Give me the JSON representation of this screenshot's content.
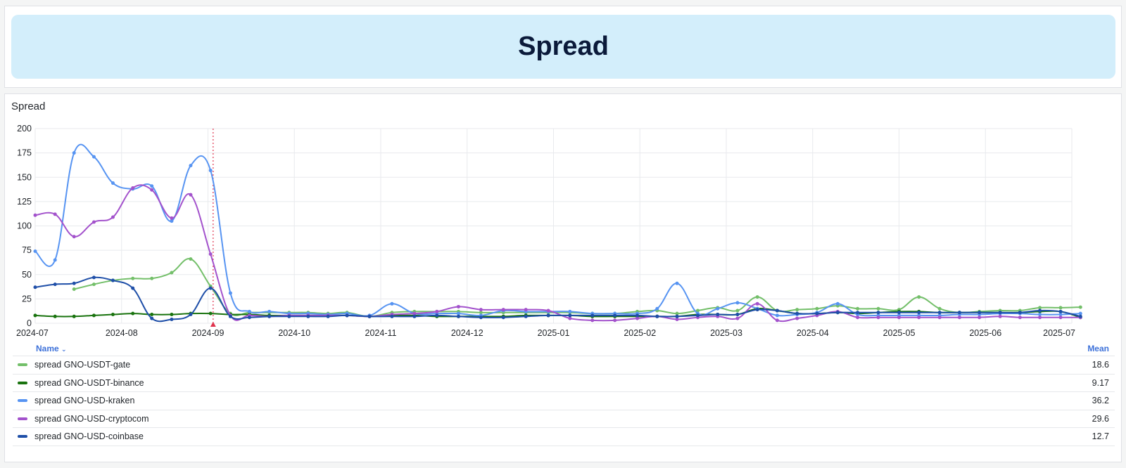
{
  "header": {
    "title": "Spread"
  },
  "panel": {
    "title": "Spread"
  },
  "legend": {
    "name_header": "Name",
    "mean_header": "Mean",
    "rows": [
      {
        "name": "spread GNO-USDT-gate",
        "mean": "18.6",
        "color": "#73bf69"
      },
      {
        "name": "spread GNO-USDT-binance",
        "mean": "9.17",
        "color": "#19730e"
      },
      {
        "name": "spread GNO-USD-kraken",
        "mean": "36.2",
        "color": "#5794f2"
      },
      {
        "name": "spread GNO-USD-cryptocom",
        "mean": "29.6",
        "color": "#a352cc"
      },
      {
        "name": "spread GNO-USD-coinbase",
        "mean": "12.7",
        "color": "#1f4fa8"
      }
    ]
  },
  "chart_data": {
    "type": "line",
    "x_tick_labels": [
      "2024-07",
      "2024-08",
      "2024-09",
      "2024-10",
      "2024-11",
      "2024-12",
      "2025-01",
      "2025-02",
      "2025-03",
      "2025-04",
      "2025-05",
      "2025-06",
      "2025-07"
    ],
    "x_tick_months": [
      0,
      1,
      2,
      3,
      4,
      5,
      6,
      7,
      8,
      9,
      10,
      11,
      12
    ],
    "y_ticks": [
      0,
      25,
      50,
      75,
      100,
      125,
      150,
      175,
      200
    ],
    "ylim": [
      0,
      200
    ],
    "xlim_months": [
      0,
      12
    ],
    "grid": true,
    "annotation_month": 2.06,
    "series": [
      {
        "name": "spread GNO-USDT-gate",
        "color": "#73bf69",
        "points": [
          [
            0.45,
            35
          ],
          [
            0.68,
            40
          ],
          [
            0.9,
            44
          ],
          [
            1.13,
            46
          ],
          [
            1.35,
            46
          ],
          [
            1.58,
            52
          ],
          [
            1.8,
            66
          ],
          [
            2.03,
            38
          ],
          [
            2.26,
            10
          ],
          [
            2.48,
            11
          ],
          [
            2.71,
            11
          ],
          [
            2.94,
            11
          ],
          [
            3.16,
            11
          ],
          [
            3.39,
            10
          ],
          [
            3.61,
            11
          ],
          [
            3.87,
            7
          ],
          [
            4.13,
            11
          ],
          [
            4.39,
            12
          ],
          [
            4.65,
            12
          ],
          [
            4.9,
            12
          ],
          [
            5.16,
            11
          ],
          [
            5.42,
            11
          ],
          [
            5.68,
            11
          ],
          [
            5.94,
            11
          ],
          [
            6.19,
            11
          ],
          [
            6.45,
            10
          ],
          [
            6.71,
            10
          ],
          [
            6.97,
            12
          ],
          [
            7.2,
            13
          ],
          [
            7.43,
            10
          ],
          [
            7.67,
            13
          ],
          [
            7.9,
            16
          ],
          [
            8.13,
            13
          ],
          [
            8.36,
            27
          ],
          [
            8.59,
            13
          ],
          [
            8.82,
            14
          ],
          [
            9.05,
            15
          ],
          [
            9.29,
            18
          ],
          [
            9.52,
            15
          ],
          [
            9.76,
            15
          ],
          [
            10.0,
            14
          ],
          [
            10.23,
            27
          ],
          [
            10.47,
            15
          ],
          [
            10.7,
            11
          ],
          [
            10.93,
            12
          ],
          [
            11.17,
            13
          ],
          [
            11.4,
            13
          ],
          [
            11.63,
            16
          ],
          [
            11.87,
            16
          ],
          [
            12.1,
            16.5
          ]
        ]
      },
      {
        "name": "spread GNO-USDT-binance",
        "color": "#19730e",
        "points": [
          [
            0.0,
            8
          ],
          [
            0.23,
            7
          ],
          [
            0.45,
            7
          ],
          [
            0.68,
            8
          ],
          [
            0.9,
            9
          ],
          [
            1.13,
            10
          ],
          [
            1.35,
            9
          ],
          [
            1.58,
            9
          ],
          [
            1.8,
            10
          ],
          [
            2.03,
            10
          ],
          [
            2.26,
            9
          ],
          [
            2.48,
            9
          ],
          [
            2.71,
            8
          ],
          [
            2.94,
            8
          ],
          [
            3.16,
            8
          ],
          [
            3.39,
            8
          ],
          [
            3.61,
            8
          ],
          [
            3.87,
            7
          ],
          [
            4.13,
            8
          ],
          [
            4.39,
            8
          ],
          [
            4.65,
            7
          ],
          [
            4.9,
            7
          ],
          [
            5.16,
            7
          ],
          [
            5.42,
            7
          ],
          [
            5.68,
            8
          ],
          [
            5.94,
            8
          ],
          [
            6.19,
            8
          ],
          [
            6.45,
            7
          ],
          [
            6.71,
            7
          ],
          [
            6.97,
            7
          ],
          [
            7.2,
            7
          ],
          [
            7.43,
            7
          ],
          [
            7.67,
            9
          ],
          [
            7.9,
            9
          ],
          [
            8.13,
            9
          ],
          [
            8.36,
            15
          ],
          [
            8.59,
            13
          ],
          [
            8.82,
            10
          ],
          [
            9.05,
            10
          ],
          [
            9.29,
            11
          ],
          [
            9.52,
            10
          ],
          [
            9.76,
            11
          ],
          [
            10.0,
            12
          ],
          [
            10.23,
            12
          ],
          [
            10.47,
            11
          ],
          [
            10.7,
            11
          ],
          [
            10.93,
            11
          ],
          [
            11.17,
            11
          ],
          [
            11.4,
            11
          ],
          [
            11.63,
            12
          ],
          [
            11.87,
            12
          ],
          [
            12.1,
            6
          ]
        ]
      },
      {
        "name": "spread GNO-USD-kraken",
        "color": "#5794f2",
        "points": [
          [
            0.0,
            74
          ],
          [
            0.23,
            65
          ],
          [
            0.45,
            175
          ],
          [
            0.68,
            171
          ],
          [
            0.9,
            144
          ],
          [
            1.13,
            138
          ],
          [
            1.35,
            141
          ],
          [
            1.58,
            105
          ],
          [
            1.8,
            162
          ],
          [
            2.03,
            157
          ],
          [
            2.26,
            31
          ],
          [
            2.48,
            12
          ],
          [
            2.71,
            12
          ],
          [
            2.94,
            10
          ],
          [
            3.16,
            10
          ],
          [
            3.39,
            9
          ],
          [
            3.61,
            10
          ],
          [
            3.87,
            8
          ],
          [
            4.13,
            20
          ],
          [
            4.39,
            10
          ],
          [
            4.65,
            10
          ],
          [
            4.9,
            10
          ],
          [
            5.16,
            8
          ],
          [
            5.42,
            13
          ],
          [
            5.68,
            12
          ],
          [
            5.94,
            12
          ],
          [
            6.19,
            12
          ],
          [
            6.45,
            10
          ],
          [
            6.71,
            10
          ],
          [
            6.97,
            10
          ],
          [
            7.2,
            15
          ],
          [
            7.43,
            41
          ],
          [
            7.67,
            10
          ],
          [
            7.9,
            15
          ],
          [
            8.13,
            21
          ],
          [
            8.36,
            15
          ],
          [
            8.59,
            8
          ],
          [
            8.82,
            9
          ],
          [
            9.05,
            11
          ],
          [
            9.29,
            20
          ],
          [
            9.52,
            9
          ],
          [
            9.76,
            8
          ],
          [
            10.0,
            8
          ],
          [
            10.23,
            8
          ],
          [
            10.47,
            8
          ],
          [
            10.7,
            9
          ],
          [
            10.93,
            9
          ],
          [
            11.17,
            10
          ],
          [
            11.4,
            10
          ],
          [
            11.63,
            9
          ],
          [
            11.87,
            9
          ],
          [
            12.1,
            10
          ]
        ]
      },
      {
        "name": "spread GNO-USD-cryptocom",
        "color": "#a352cc",
        "points": [
          [
            0.0,
            111
          ],
          [
            0.23,
            112
          ],
          [
            0.45,
            89
          ],
          [
            0.68,
            104
          ],
          [
            0.9,
            109
          ],
          [
            1.13,
            139
          ],
          [
            1.35,
            137
          ],
          [
            1.58,
            108
          ],
          [
            1.8,
            132
          ],
          [
            2.03,
            71
          ],
          [
            2.26,
            8
          ],
          [
            2.48,
            8
          ],
          [
            2.71,
            7
          ],
          [
            2.94,
            8
          ],
          [
            3.16,
            8
          ],
          [
            3.39,
            8
          ],
          [
            3.61,
            8
          ],
          [
            3.87,
            7
          ],
          [
            4.13,
            9
          ],
          [
            4.39,
            10
          ],
          [
            4.65,
            12
          ],
          [
            4.9,
            17
          ],
          [
            5.16,
            14
          ],
          [
            5.42,
            14
          ],
          [
            5.68,
            14
          ],
          [
            5.94,
            13
          ],
          [
            6.19,
            5
          ],
          [
            6.45,
            3
          ],
          [
            6.71,
            3
          ],
          [
            6.97,
            5
          ],
          [
            7.2,
            7
          ],
          [
            7.43,
            4
          ],
          [
            7.67,
            6
          ],
          [
            7.9,
            7
          ],
          [
            8.13,
            5
          ],
          [
            8.36,
            20
          ],
          [
            8.59,
            3
          ],
          [
            8.82,
            5
          ],
          [
            9.05,
            8
          ],
          [
            9.29,
            12
          ],
          [
            9.52,
            6
          ],
          [
            9.76,
            6
          ],
          [
            10.0,
            6
          ],
          [
            10.23,
            6
          ],
          [
            10.47,
            6
          ],
          [
            10.7,
            6
          ],
          [
            10.93,
            6
          ],
          [
            11.17,
            7
          ],
          [
            11.4,
            6
          ],
          [
            11.63,
            6
          ],
          [
            11.87,
            6
          ],
          [
            12.1,
            6
          ]
        ]
      },
      {
        "name": "spread GNO-USD-coinbase",
        "color": "#1f4fa8",
        "points": [
          [
            0.0,
            37
          ],
          [
            0.23,
            40
          ],
          [
            0.45,
            41
          ],
          [
            0.68,
            47
          ],
          [
            0.9,
            44
          ],
          [
            1.13,
            36
          ],
          [
            1.35,
            5
          ],
          [
            1.58,
            4
          ],
          [
            1.8,
            9
          ],
          [
            2.03,
            36
          ],
          [
            2.26,
            7
          ],
          [
            2.48,
            6
          ],
          [
            2.71,
            7
          ],
          [
            2.94,
            7
          ],
          [
            3.16,
            7
          ],
          [
            3.39,
            7
          ],
          [
            3.61,
            8
          ],
          [
            3.87,
            7
          ],
          [
            4.13,
            7
          ],
          [
            4.39,
            7
          ],
          [
            4.65,
            8
          ],
          [
            4.9,
            7
          ],
          [
            5.16,
            6
          ],
          [
            5.42,
            6
          ],
          [
            5.68,
            7
          ],
          [
            5.94,
            8
          ],
          [
            6.19,
            8
          ],
          [
            6.45,
            8
          ],
          [
            6.71,
            8
          ],
          [
            6.97,
            8
          ],
          [
            7.2,
            7
          ],
          [
            7.43,
            7
          ],
          [
            7.67,
            8
          ],
          [
            7.9,
            9
          ],
          [
            8.13,
            9
          ],
          [
            8.36,
            14
          ],
          [
            8.59,
            13
          ],
          [
            8.82,
            10
          ],
          [
            9.05,
            10
          ],
          [
            9.29,
            11
          ],
          [
            9.52,
            11
          ],
          [
            9.76,
            11
          ],
          [
            10.0,
            11
          ],
          [
            10.23,
            11
          ],
          [
            10.47,
            11
          ],
          [
            10.7,
            11
          ],
          [
            10.93,
            11
          ],
          [
            11.17,
            11
          ],
          [
            11.4,
            11
          ],
          [
            11.63,
            13
          ],
          [
            11.87,
            12
          ],
          [
            12.1,
            7
          ]
        ]
      }
    ]
  }
}
